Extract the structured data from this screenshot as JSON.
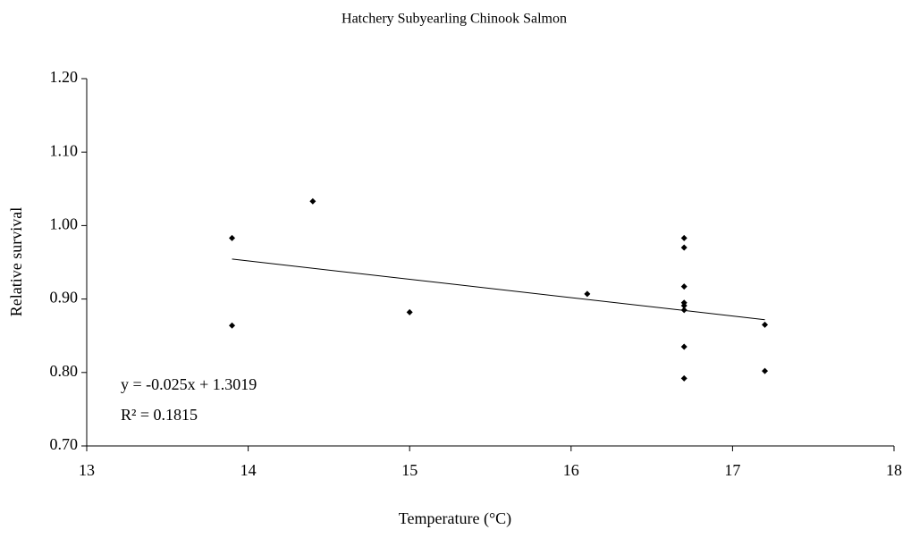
{
  "chart_data": {
    "type": "scatter",
    "title": "Hatchery Subyearling Chinook Salmon",
    "x_label": "Temperature (°C)",
    "y_label": "Relative survival",
    "annotations": [
      "y = -0.025x + 1.3019",
      "R² = 0.1815"
    ],
    "series": [
      {
        "color": "#000000",
        "x": [
          13.9,
          13.9,
          14.4,
          15.0,
          16.1,
          16.7,
          16.7,
          16.7,
          16.7,
          16.7,
          16.7,
          16.7,
          16.7,
          17.2,
          17.2
        ],
        "values": [
          0.983,
          0.864,
          1.033,
          0.882,
          0.907,
          0.983,
          0.97,
          0.917,
          0.895,
          0.891,
          0.885,
          0.835,
          0.792,
          0.865,
          0.802
        ]
      }
    ],
    "trendline": {
      "slope": -0.025,
      "intercept": 1.3019
    },
    "xlim": [
      13,
      18
    ],
    "xticks": [
      13,
      14,
      15,
      16,
      17,
      18
    ],
    "ylim": [
      0.7,
      1.2
    ],
    "yticks": [
      {
        "value": 0.7,
        "label": "0.70"
      },
      {
        "value": 0.8,
        "label": "0.80"
      },
      {
        "value": 0.9,
        "label": "0.90"
      },
      {
        "value": 1.0,
        "label": "1.00"
      },
      {
        "value": 1.1,
        "label": "1.10"
      },
      {
        "value": 1.2,
        "label": "1.20"
      }
    ],
    "grid": false
  }
}
